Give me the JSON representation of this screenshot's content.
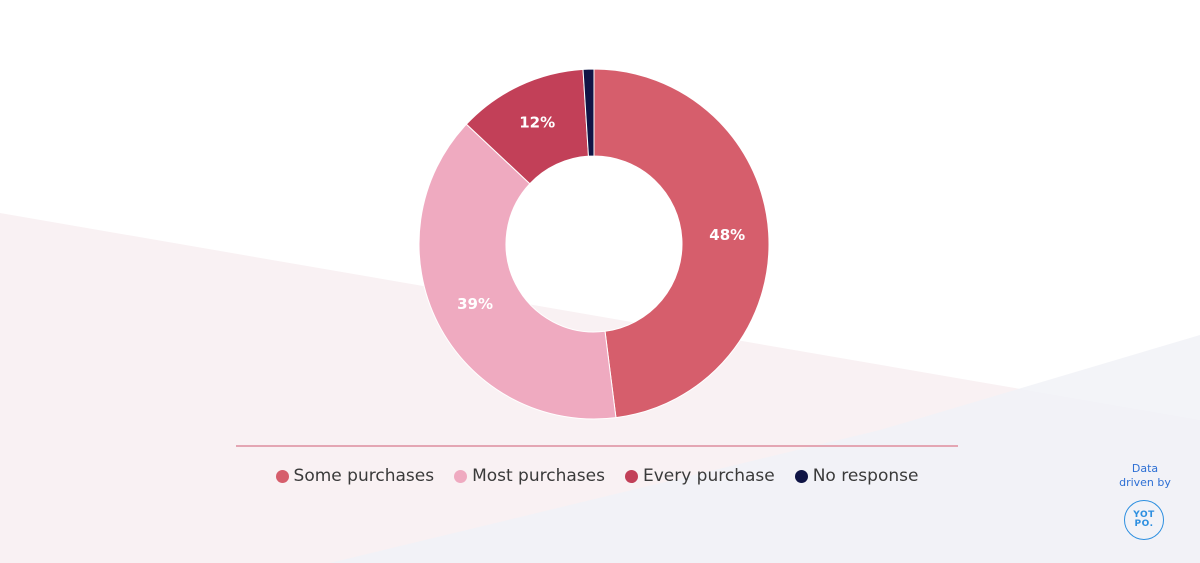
{
  "colors": {
    "some_purchases": "#d65e6c",
    "most_purchases": "#efaac0",
    "every_purchase": "#c24058",
    "no_response": "#0f1445",
    "legend_rule": "#e4a6b3",
    "brand_blue": "#2d6fd4"
  },
  "chart_data": {
    "type": "pie",
    "variant": "donut",
    "categories": [
      "Some purchases",
      "Most purchases",
      "Every purchase",
      "No response"
    ],
    "values": [
      48,
      39,
      12,
      1
    ],
    "data_labels": [
      "48%",
      "39%",
      "12%",
      ""
    ],
    "legend_placement": "bottom",
    "title": ""
  },
  "credit": {
    "line1": "Data",
    "line2": "driven by",
    "logo_line1": "YOT",
    "logo_line2": "PO."
  }
}
